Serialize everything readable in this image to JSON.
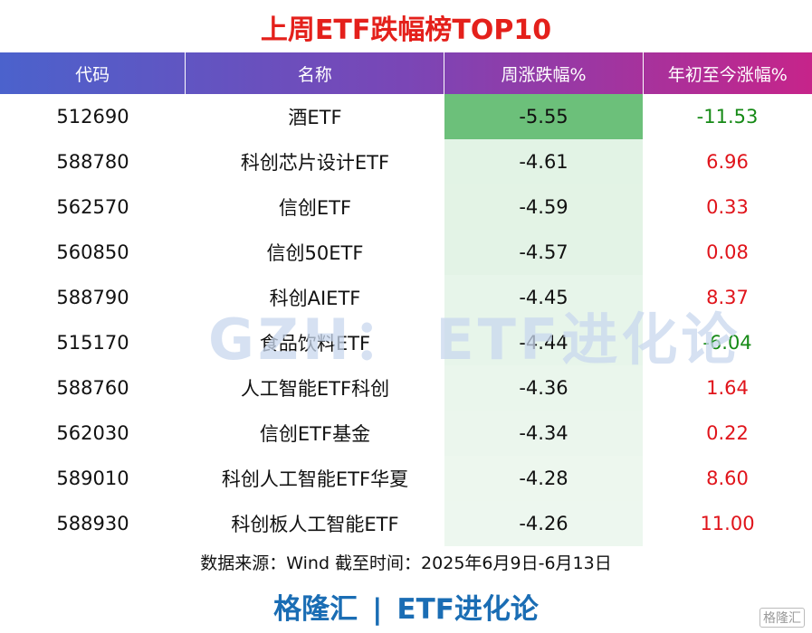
{
  "header": {
    "title": "上周ETF跌幅榜TOP10"
  },
  "table": {
    "columns": [
      "代码",
      "名称",
      "周涨跌幅%",
      "年初至今涨幅%"
    ],
    "rows": [
      [
        "512690",
        "酒ETF",
        "-5.55",
        "-11.53"
      ],
      [
        "588780",
        "科创芯片设计ETF",
        "-4.61",
        "6.96"
      ],
      [
        "562570",
        "信创ETF",
        "-4.59",
        "0.33"
      ],
      [
        "560850",
        "信创50ETF",
        "-4.57",
        "0.08"
      ],
      [
        "588790",
        "科创AIETF",
        "-4.45",
        "8.37"
      ],
      [
        "515170",
        "食品饮料ETF",
        "-4.44",
        "-6.04"
      ],
      [
        "588760",
        "人工智能ETF科创",
        "-4.36",
        "1.64"
      ],
      [
        "562030",
        "信创ETF基金",
        "-4.34",
        "0.22"
      ],
      [
        "589010",
        "科创人工智能ETF华夏",
        "-4.28",
        "8.60"
      ],
      [
        "588930",
        "科创板人工智能ETF",
        "-4.26",
        "11.00"
      ]
    ]
  },
  "watermark": "GZH： ETF进化论",
  "source": "数据来源：Wind 截至时间：2025年6月9日-6月13日",
  "footer": {
    "brand": "格隆汇",
    "separator": "|",
    "channel": "ETF进化论",
    "logo": "格隆汇"
  }
}
